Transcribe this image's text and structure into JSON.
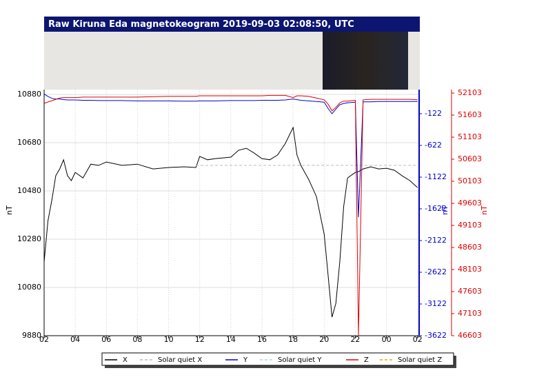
{
  "chart_data": {
    "type": "line",
    "title": "Raw Kiruna Eda magnetokeogram 2019-09-03 02:08:50, UTC",
    "ylabel": "nT",
    "y2label": "nT",
    "y3label": "nT",
    "x": [
      0,
      0.25,
      0.5,
      0.75,
      1,
      1.25,
      1.5,
      1.75,
      2,
      2.5,
      3,
      3.5,
      4,
      5,
      6,
      7,
      8,
      9,
      9.75,
      10,
      10.5,
      11,
      12,
      12.5,
      13,
      13.5,
      14,
      14.5,
      15,
      15.5,
      16,
      16.25,
      16.5,
      17,
      17.5,
      18,
      18.25,
      18.5,
      18.75,
      19,
      19.25,
      19.5,
      20,
      20.2,
      20.5,
      21,
      21.5,
      22,
      22.5,
      23,
      23.5,
      24
    ],
    "xlim": [
      0,
      24.1
    ],
    "xticks": [
      {
        "value": 0,
        "label": "02"
      },
      {
        "value": 2,
        "label": "04"
      },
      {
        "value": 4,
        "label": "06"
      },
      {
        "value": 6,
        "label": "08"
      },
      {
        "value": 8,
        "label": "10"
      },
      {
        "value": 10,
        "label": "12"
      },
      {
        "value": 12,
        "label": "14"
      },
      {
        "value": 14,
        "label": "16"
      },
      {
        "value": 16,
        "label": "18"
      },
      {
        "value": 18,
        "label": "20"
      },
      {
        "value": 20,
        "label": "22"
      },
      {
        "value": 22,
        "label": "00"
      },
      {
        "value": 24,
        "label": "02"
      }
    ],
    "ylim": [
      9880,
      10900
    ],
    "yticks": [
      9880,
      10080,
      10280,
      10480,
      10680,
      10880
    ],
    "y2lim": [
      -3622,
      258
    ],
    "y2ticks": [
      -3622,
      -3122,
      -2622,
      -2122,
      -1622,
      -1122,
      -622,
      -122
    ],
    "y2color": "#0000cc",
    "y3lim": [
      46603,
      52181
    ],
    "y3ticks": [
      46603,
      47103,
      47603,
      48103,
      48603,
      49103,
      49603,
      50103,
      50603,
      51103,
      51603,
      52103
    ],
    "y3color": "#dd0000",
    "grid": true,
    "series": [
      {
        "name": "X",
        "color": "#000000",
        "dashed": false,
        "axis": "y",
        "values": [
          10186,
          10357,
          10443,
          10543,
          10571,
          10609,
          10543,
          10523,
          10557,
          10534,
          10591,
          10586,
          10600,
          10586,
          10591,
          10571,
          10577,
          10580,
          10577,
          10623,
          10609,
          10614,
          10620,
          10649,
          10657,
          10637,
          10614,
          10609,
          10629,
          10677,
          10743,
          10629,
          10586,
          10528,
          10457,
          10300,
          10129,
          9957,
          10014,
          10186,
          10414,
          10534,
          10557,
          10560,
          10571,
          10580,
          10571,
          10574,
          10566,
          10543,
          10523,
          10494
        ]
      },
      {
        "name": "Solar quiet X",
        "color": "#bbbbbb",
        "dashed": true,
        "axis": "y",
        "values": [
          null,
          null,
          null,
          null,
          null,
          null,
          null,
          null,
          null,
          null,
          null,
          null,
          null,
          null,
          null,
          null,
          null,
          null,
          10586,
          10586,
          10586,
          10586,
          10586,
          10586,
          10586,
          10586,
          10586,
          10586,
          10586,
          10586,
          10586,
          10586,
          10586,
          10586,
          10586,
          10586,
          10586,
          10586,
          10586,
          10586,
          10586,
          10586,
          10586,
          10586,
          10586,
          10586,
          10586,
          10586,
          10586,
          10586,
          10586,
          10586
        ]
      },
      {
        "name": "Y",
        "color": "#0000cc",
        "dashed": false,
        "axis": "y2",
        "values": [
          190,
          150,
          120,
          110,
          110,
          100,
          95,
          95,
          95,
          90,
          90,
          85,
          85,
          85,
          80,
          80,
          80,
          75,
          75,
          80,
          80,
          80,
          85,
          85,
          85,
          85,
          90,
          90,
          90,
          95,
          110,
          100,
          90,
          80,
          70,
          60,
          -40,
          -122,
          -50,
          20,
          40,
          50,
          60,
          -1753,
          65,
          65,
          70,
          70,
          70,
          70,
          70,
          70
        ]
      },
      {
        "name": "Solar quiet Y",
        "color": "#a8d8f0",
        "dashed": true,
        "axis": "y2",
        "values": [
          null,
          null,
          null,
          null,
          null,
          null,
          null,
          null,
          null,
          null,
          null,
          null,
          null,
          null,
          null,
          null,
          null,
          null,
          null,
          null,
          null,
          null,
          null,
          null,
          null,
          null,
          null,
          null,
          null,
          null,
          null,
          null,
          null,
          null,
          null,
          null,
          null,
          null,
          null,
          null,
          null,
          null,
          null,
          null,
          null,
          null,
          null,
          null,
          null,
          null,
          null,
          null
        ]
      },
      {
        "name": "Z",
        "color": "#dd0000",
        "dashed": false,
        "axis": "y3",
        "values": [
          51870,
          51900,
          51930,
          51960,
          51990,
          52000,
          52000,
          52000,
          52000,
          52010,
          52010,
          52010,
          52010,
          52010,
          52010,
          52020,
          52030,
          52030,
          52030,
          52040,
          52040,
          52040,
          52040,
          52040,
          52040,
          52040,
          52040,
          52050,
          52050,
          52050,
          52000,
          52040,
          52040,
          52030,
          51990,
          51950,
          51850,
          51700,
          51780,
          51880,
          51920,
          51920,
          51940,
          46603,
          51950,
          51960,
          51960,
          51960,
          51960,
          51960,
          51960,
          51950
        ]
      },
      {
        "name": "Solar quiet Z",
        "color": "#f0a000",
        "dashed": true,
        "axis": "y3",
        "values": [
          null,
          null,
          null,
          null,
          null,
          null,
          null,
          null,
          null,
          null,
          null,
          null,
          null,
          null,
          null,
          null,
          null,
          null,
          null,
          null,
          null,
          null,
          null,
          null,
          null,
          null,
          null,
          null,
          null,
          null,
          null,
          null,
          null,
          null,
          null,
          null,
          null,
          null,
          null,
          null,
          null,
          null,
          null,
          null,
          null,
          null,
          null,
          null,
          null,
          null,
          null,
          null
        ]
      }
    ]
  }
}
